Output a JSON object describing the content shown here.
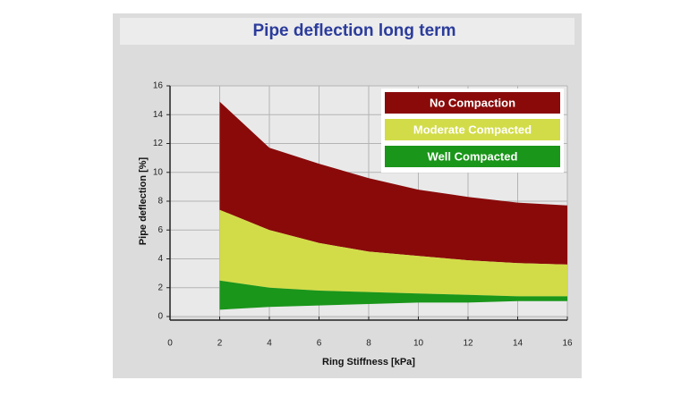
{
  "chart_data": {
    "type": "band",
    "title": "Pipe deflection long term",
    "x_label": "Ring Stiffness [kPa]",
    "y_label": "Pipe deflection [%]",
    "x": [
      2,
      4,
      6,
      8,
      10,
      12,
      14,
      16
    ],
    "series": [
      {
        "name": "No Compaction",
        "color": "#8a0a0a",
        "values": [
          14.9,
          11.7,
          10.6,
          9.6,
          8.8,
          8.3,
          7.9,
          7.7
        ]
      },
      {
        "name": "Moderate Compacted",
        "color": "#d2dc48",
        "values": [
          7.4,
          6.0,
          5.1,
          4.5,
          4.2,
          3.9,
          3.7,
          3.6
        ]
      },
      {
        "name": "Well Compacted",
        "color": "#1a961a",
        "values": [
          2.5,
          2.0,
          1.8,
          1.7,
          1.6,
          1.5,
          1.4,
          1.4
        ]
      }
    ],
    "baseline": [
      0.5,
      0.7,
      0.8,
      0.9,
      1.0,
      1.0,
      1.1,
      1.1
    ],
    "xlim": [
      0,
      16
    ],
    "xticks": [
      0,
      2,
      4,
      6,
      8,
      10,
      12,
      14,
      16
    ],
    "ylim": [
      0,
      16
    ],
    "yticks": [
      0,
      2,
      4,
      6,
      8,
      10,
      12,
      14,
      16
    ],
    "grid": true,
    "legend": "upper right"
  }
}
